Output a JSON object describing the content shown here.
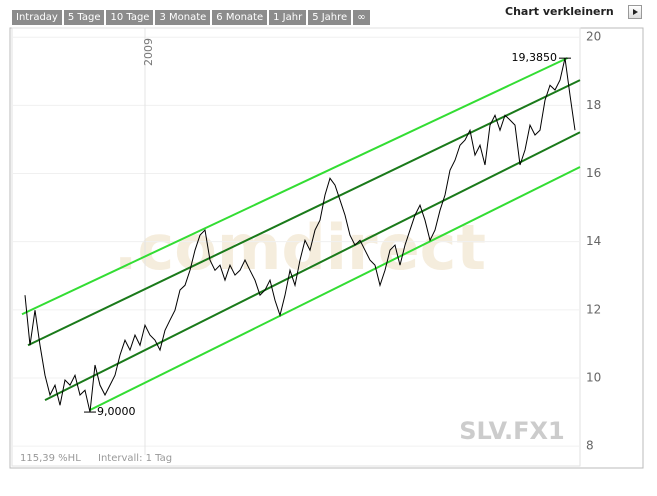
{
  "toolbar": [
    "Intraday",
    "5 Tage",
    "10 Tage",
    "3 Monate",
    "6 Monate",
    "1 Jahr",
    "5 Jahre",
    "∞"
  ],
  "shrink_label": "Chart verkleinern",
  "chart_data": {
    "type": "line",
    "watermark": ".comdirect",
    "symbol": "SLV.FX1",
    "footer": [
      "115,39 %HL",
      "Intervall: 1 Tag"
    ],
    "color": "#000000",
    "categories": [
      null,
      null,
      null,
      null,
      null,
      null,
      null,
      null,
      null,
      null,
      null,
      null,
      null,
      null,
      null,
      null,
      null,
      null,
      null,
      null,
      null,
      null,
      null,
      null,
      "2009",
      null,
      null,
      null,
      null,
      null,
      null,
      null,
      null,
      null,
      null,
      null,
      null,
      null,
      null,
      null,
      null,
      null,
      null,
      null,
      null,
      null,
      null,
      null,
      null,
      null,
      null,
      null,
      null,
      null,
      null,
      null,
      null,
      null,
      null,
      null,
      null,
      null,
      null,
      null,
      null,
      null,
      null,
      null,
      null,
      null,
      null,
      null,
      null,
      null,
      null,
      null,
      null,
      null,
      null,
      null,
      null,
      null,
      null,
      null,
      null,
      null,
      null,
      null,
      null,
      null,
      null,
      null,
      null,
      null,
      null,
      null,
      null,
      null,
      null,
      null,
      null,
      null,
      null,
      null,
      null,
      null,
      null,
      null,
      null,
      null,
      null
    ],
    "values": [
      12.43,
      10.96,
      11.99,
      10.96,
      10.08,
      9.5,
      9.79,
      9.2,
      9.94,
      9.79,
      10.08,
      9.5,
      9.64,
      9.0,
      10.38,
      9.79,
      9.5,
      9.79,
      10.08,
      10.67,
      11.11,
      10.82,
      11.26,
      10.96,
      11.55,
      11.26,
      11.11,
      10.82,
      11.4,
      11.7,
      11.99,
      12.58,
      12.72,
      13.16,
      13.75,
      14.19,
      14.34,
      13.46,
      13.16,
      13.31,
      12.87,
      13.31,
      13.02,
      13.16,
      13.46,
      13.16,
      12.87,
      12.43,
      12.58,
      12.87,
      12.28,
      11.84,
      12.43,
      13.16,
      12.72,
      13.46,
      14.04,
      13.75,
      14.34,
      14.63,
      15.37,
      15.86,
      15.66,
      15.22,
      14.78,
      14.19,
      13.9,
      14.04,
      13.75,
      13.46,
      13.31,
      12.72,
      13.16,
      13.75,
      13.9,
      13.31,
      13.9,
      14.34,
      14.78,
      15.07,
      14.63,
      14.04,
      14.34,
      14.92,
      15.37,
      16.1,
      16.39,
      16.83,
      16.98,
      17.27,
      16.54,
      16.83,
      16.25,
      17.42,
      17.71,
      17.27,
      17.71,
      17.57,
      17.42,
      16.25,
      16.69,
      17.42,
      17.13,
      17.27,
      18.15,
      18.59,
      18.45,
      18.74,
      19.385,
      18.3,
      17.27
    ],
    "annotations": [
      "19,3850",
      "9,0000"
    ],
    "channels": [
      {
        "color": "#33dd33",
        "x": [
          -0.6,
          108.5
        ],
        "values": [
          11.87,
          19.39
        ]
      },
      {
        "color": "#1a7a1a",
        "x": [
          0.6,
          111
        ],
        "values": [
          10.96,
          18.74
        ]
      },
      {
        "color": "#1a7a1a",
        "x": [
          4,
          111
        ],
        "values": [
          9.35,
          17.21
        ]
      },
      {
        "color": "#33dd33",
        "x": [
          13,
          111
        ],
        "values": [
          9.06,
          16.19
        ]
      }
    ],
    "ylim": [
      7.74,
      20.27
    ],
    "yticks": [
      8,
      10,
      12,
      14,
      16,
      18,
      20
    ],
    "grid": true
  }
}
